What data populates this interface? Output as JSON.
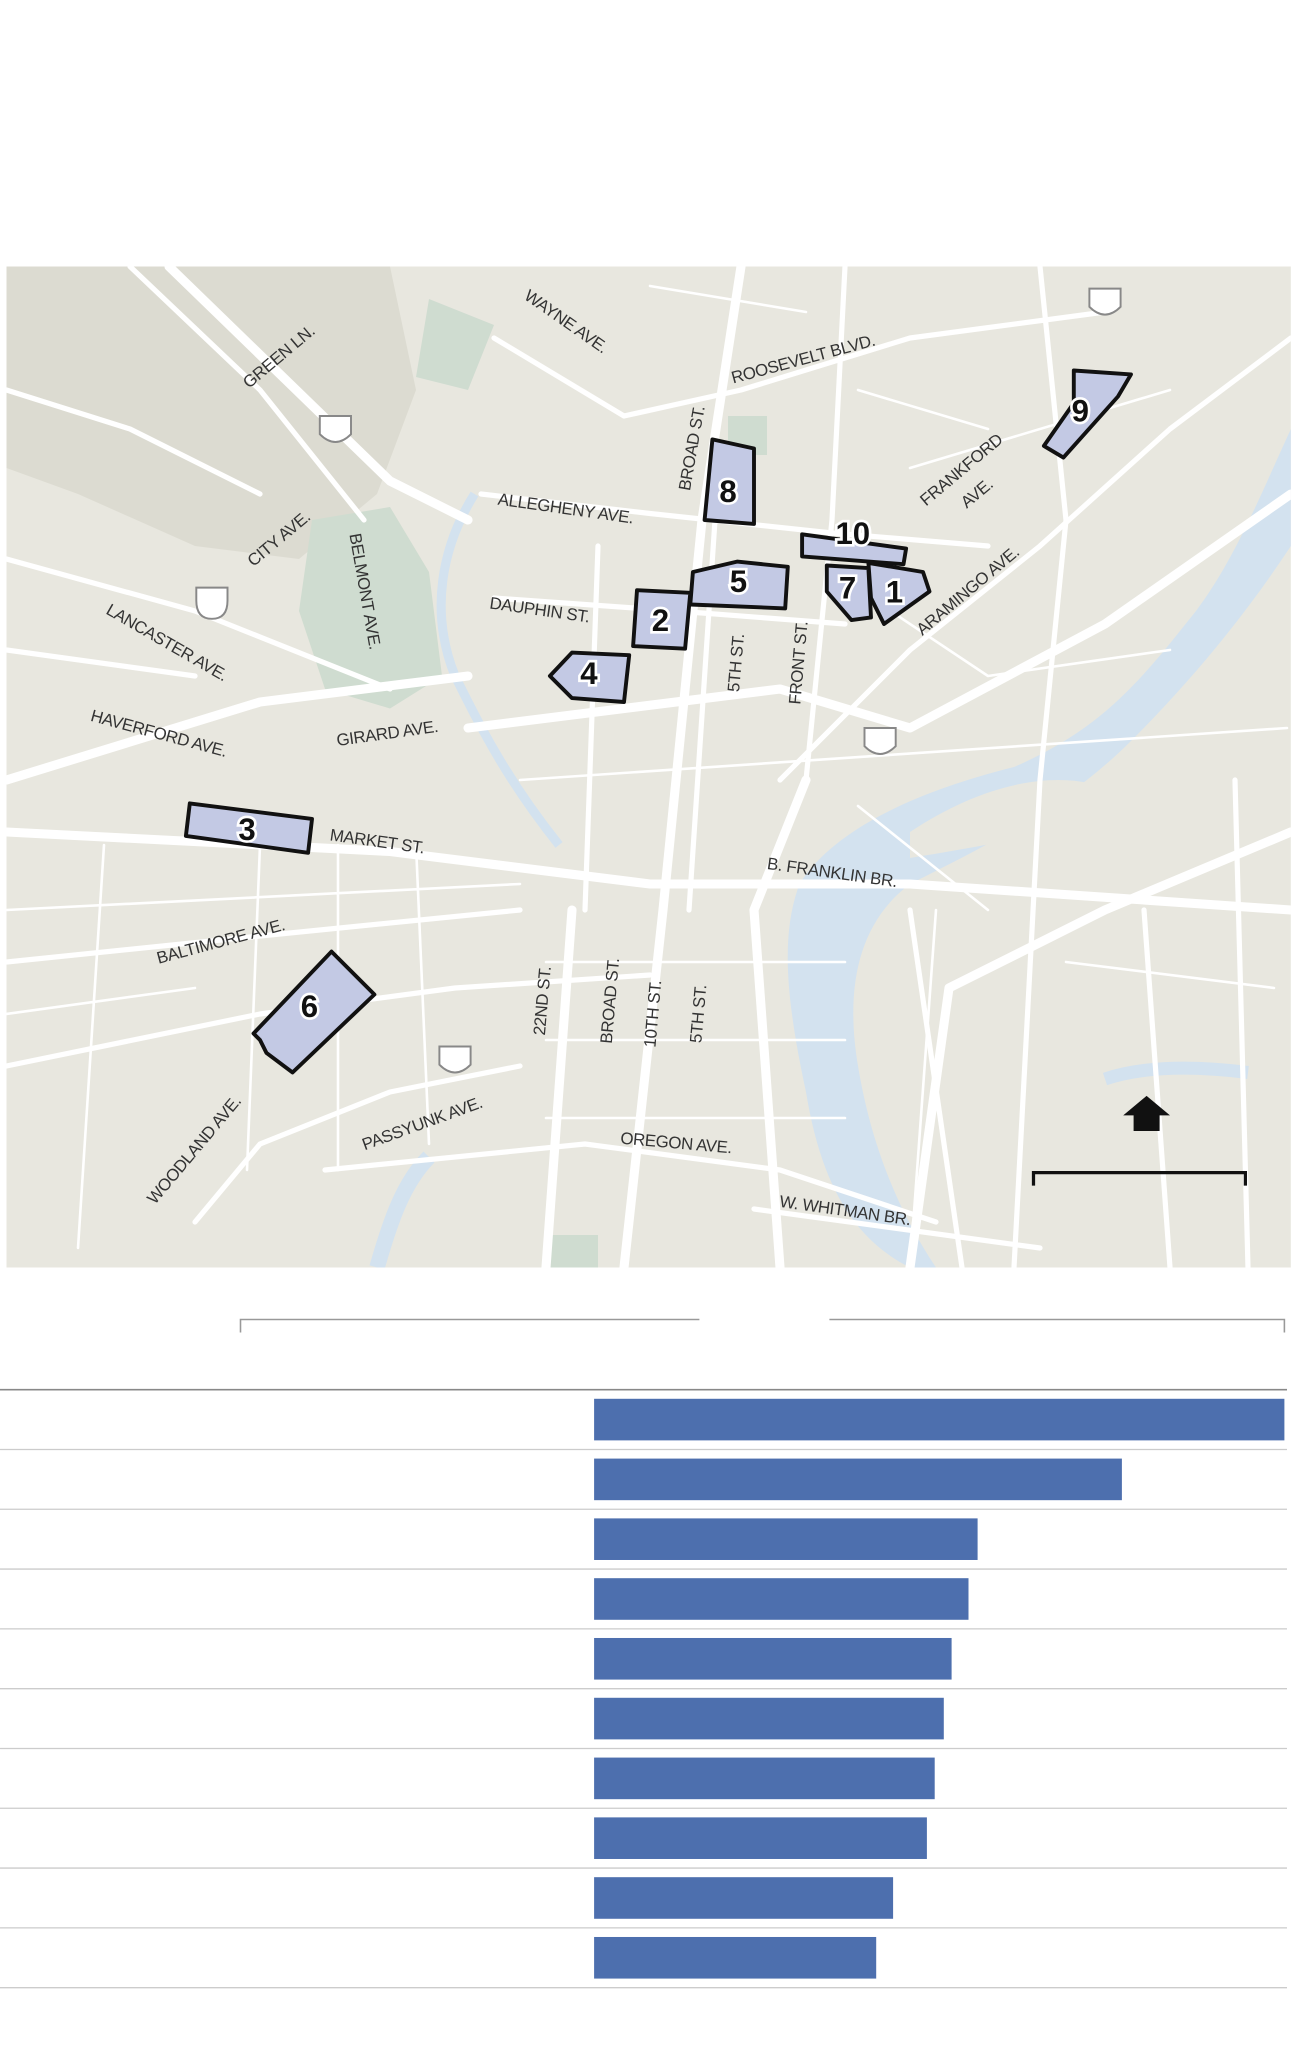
{
  "map": {
    "streets": [
      "WAYNE AVE.",
      "GREEN LN.",
      "ROOSEVELT BLVD.",
      "BROAD ST.",
      "ALLEGHENY AVE.",
      "FRANKFORD",
      "AVE.",
      "CITY AVE.",
      "BELMONT AVE.",
      "ARAMINGO AVE.",
      "DAUPHIN ST.",
      "LANCASTER AVE.",
      "5TH ST.",
      "FRONT ST.",
      "HAVERFORD AVE.",
      "GIRARD AVE.",
      "MARKET ST.",
      "B. FRANKLIN BR.",
      "BALTIMORE AVE.",
      "22ND ST.",
      "BROAD ST.",
      "10TH ST.",
      "5TH ST.",
      "PASSYUNK AVE.",
      "OREGON AVE.",
      "WOODLAND AVE.",
      "W. WHITMAN BR."
    ],
    "areas": [
      "1",
      "10",
      "7",
      "8",
      "5",
      "2",
      "4",
      "9",
      "3",
      "6"
    ]
  },
  "chart_data": {
    "type": "bar",
    "orientation": "horizontal",
    "color": "#4d6fae",
    "values": [
      531,
      406,
      295,
      288,
      275,
      269,
      262,
      256,
      230,
      217
    ]
  }
}
